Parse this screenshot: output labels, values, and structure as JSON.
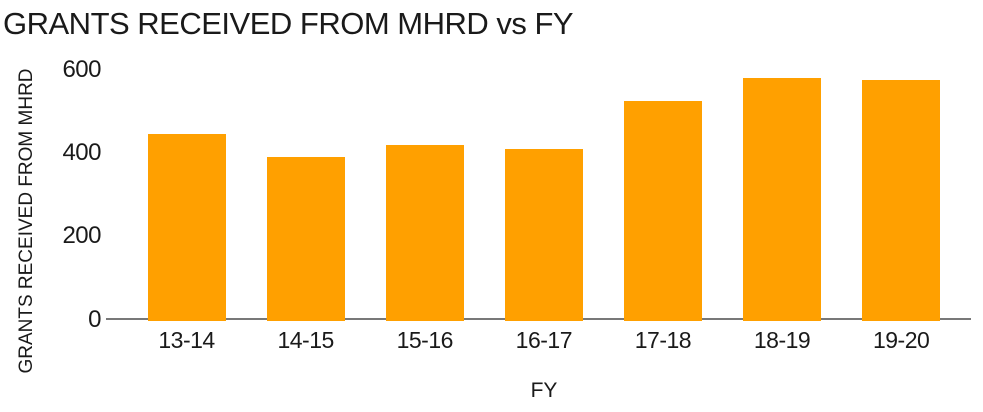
{
  "colors": {
    "bar_fill": "#FFA000",
    "axis_line": "#787878",
    "text": "#1a1a1a",
    "background": "#ffffff"
  },
  "chart_data": {
    "type": "bar",
    "title": "GRANTS RECEIVED FROM MHRD vs FY",
    "xlabel": "FY",
    "ylabel": "GRANTS RECEIVED FROM MHRD",
    "categories": [
      "13-14",
      "14-15",
      "15-16",
      "16-17",
      "17-18",
      "18-19",
      "19-20"
    ],
    "values": [
      445,
      390,
      420,
      410,
      525,
      580,
      575
    ],
    "ylim": [
      0,
      600
    ],
    "yticks": [
      0,
      200,
      400,
      600
    ],
    "grid": false,
    "legend": "none"
  }
}
